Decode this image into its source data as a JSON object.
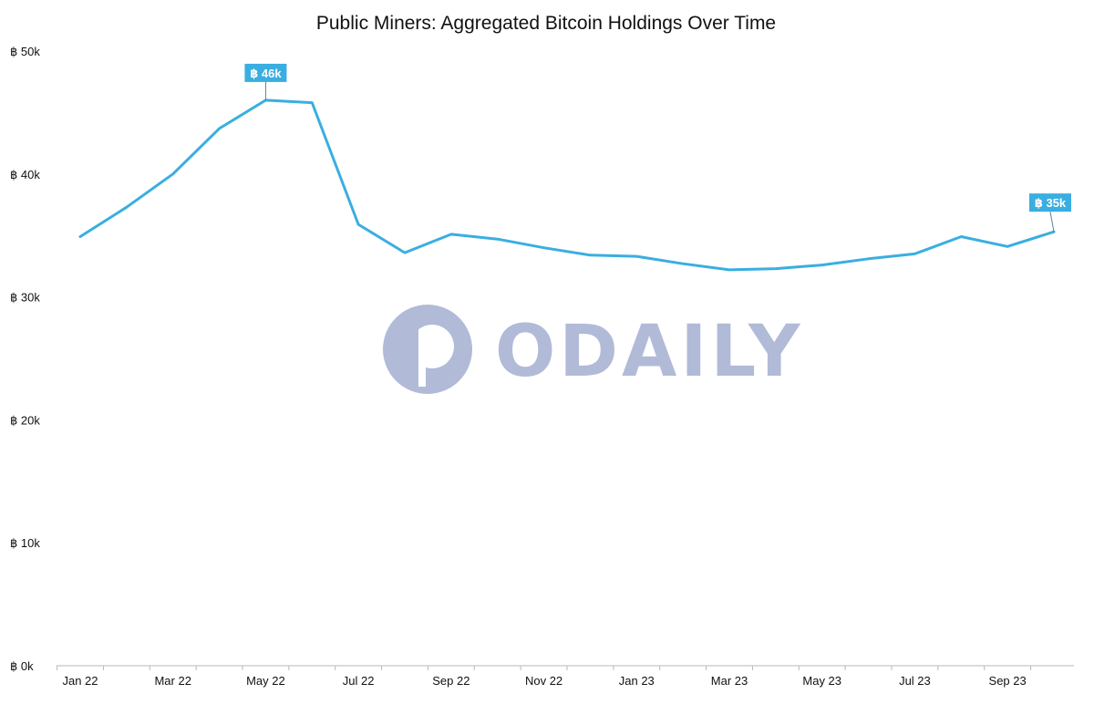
{
  "colors": {
    "line": "#3aaee0",
    "callout_bg": "#3aaee0",
    "axis": "#b9b9b9",
    "watermark": "#a9b4d3"
  },
  "watermark": {
    "text": "ODAILY",
    "icon": "odaily-logo-icon"
  },
  "chart_data": {
    "type": "line",
    "title": "Public Miners: Aggregated Bitcoin Holdings Over Time",
    "xlabel": "",
    "ylabel": "",
    "x": [
      "2022-01",
      "2022-02",
      "2022-03",
      "2022-04",
      "2022-05",
      "2022-06",
      "2022-07",
      "2022-08",
      "2022-09",
      "2022-10",
      "2022-11",
      "2022-12",
      "2023-01",
      "2023-02",
      "2023-03",
      "2023-04",
      "2023-05",
      "2023-06",
      "2023-07",
      "2023-08",
      "2023-09",
      "2023-10"
    ],
    "series": [
      {
        "values": [
          34900,
          37300,
          40000,
          43700,
          46000,
          45800,
          35900,
          33600,
          35100,
          34700,
          34000,
          33400,
          33300,
          32700,
          32200,
          32300,
          32600,
          33100,
          33500,
          34900,
          34100,
          35300
        ]
      }
    ],
    "x_tick_labels": [
      "Jan 22",
      "Mar 22",
      "May 22",
      "Jul 22",
      "Sep 22",
      "Nov 22",
      "Jan 23",
      "Mar 23",
      "May 23",
      "Jul 23",
      "Sep 23"
    ],
    "y_ticks": [
      0,
      10000,
      20000,
      30000,
      40000,
      50000
    ],
    "y_tick_labels": [
      "฿ 0k",
      "฿ 10k",
      "฿ 20k",
      "฿ 30k",
      "฿ 40k",
      "฿ 50k"
    ],
    "ylim": [
      0,
      50000
    ],
    "grid": false,
    "legend": "none",
    "annotations": [
      {
        "x": "2022-05",
        "y": 46000,
        "text": "฿ 46k"
      },
      {
        "x": "2023-10",
        "y": 35300,
        "text": "฿ 35k"
      }
    ]
  }
}
